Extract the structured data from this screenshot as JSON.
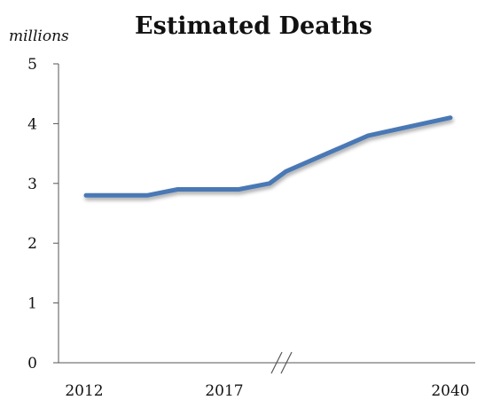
{
  "chart_data": {
    "type": "line",
    "title": "Estimated Deaths",
    "unit_label": "millions",
    "xlabel": "",
    "ylabel": "",
    "ylim": [
      0,
      5
    ],
    "y_ticks": [
      "0",
      "1",
      "2",
      "3",
      "4",
      "5"
    ],
    "x_tick_labels": [
      "2012",
      "2017",
      "2040"
    ],
    "axis_break_marker": "//",
    "grid": false,
    "legend": "none",
    "color": "#4a78b5",
    "series": [
      {
        "x": [
          2012,
          2013,
          2014,
          2015,
          2016,
          2017,
          2018,
          2020,
          2025,
          2030,
          2035,
          2040
        ],
        "values": [
          2.8,
          2.8,
          2.8,
          2.9,
          2.9,
          2.9,
          3.0,
          3.2,
          3.5,
          3.8,
          3.95,
          4.1
        ]
      }
    ]
  }
}
